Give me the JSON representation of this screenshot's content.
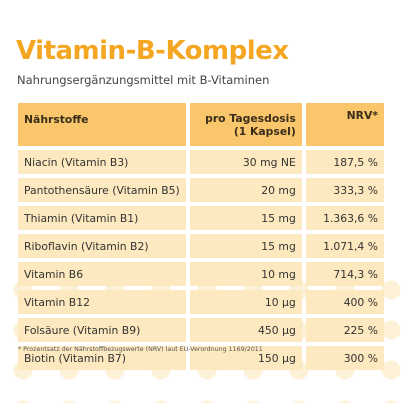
{
  "title": "Vitamin-B-Komplex",
  "subtitle": "Nahrungsergänzungsmittel mit B-Vitaminen",
  "table": {
    "headers": {
      "name": "Nährstoffe",
      "dose_line1": "pro Tagesdosis",
      "dose_line2": "(1 Kapsel)",
      "nrv": "NRV*"
    },
    "rows": [
      {
        "name": "Niacin (Vitamin B3)",
        "dose": "30 mg NE",
        "nrv": "187,5 %"
      },
      {
        "name": "Pantothensäure (Vitamin B5)",
        "dose": "20 mg",
        "nrv": "333,3 %"
      },
      {
        "name": "Thiamin (Vitamin B1)",
        "dose": "15 mg",
        "nrv": "1.363,6 %"
      },
      {
        "name": "Riboflavin (Vitamin B2)",
        "dose": "15 mg",
        "nrv": "1.071,4 %"
      },
      {
        "name": "Vitamin B6",
        "dose": "10 mg",
        "nrv": "714,3 %"
      },
      {
        "name": "Vitamin B12",
        "dose": "10 µg",
        "nrv": "400 %"
      },
      {
        "name": "Folsäure (Vitamin B9)",
        "dose": "450 µg",
        "nrv": "225 %"
      },
      {
        "name": "Biotin (Vitamin B7)",
        "dose": "150 µg",
        "nrv": "300 %"
      }
    ]
  },
  "footnote": "*    Prozentsatz der Nährstoffbezugswerte (NRV) laut EU-Verordnung 1169/2011",
  "colors": {
    "title": "#f5a623",
    "header_bg": "#f9c66b",
    "cell_bg": "#fde9bf"
  }
}
